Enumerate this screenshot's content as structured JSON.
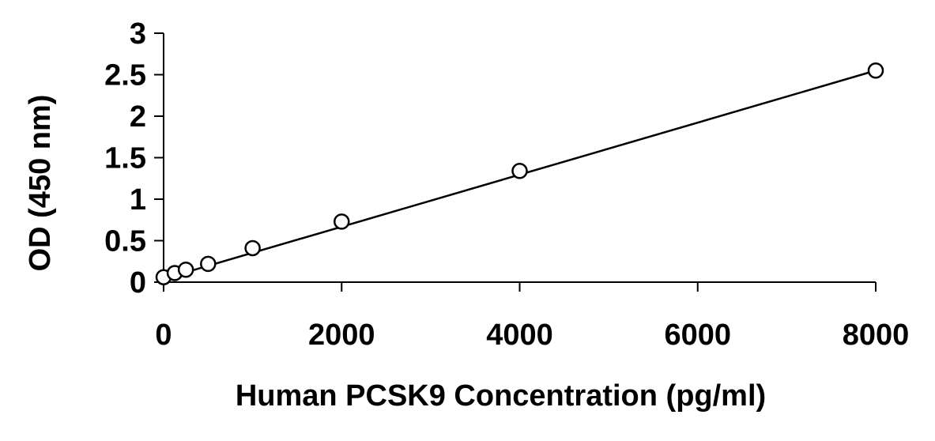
{
  "chart_data": {
    "type": "scatter",
    "title": "",
    "xlabel": "Human PCSK9 Concentration (pg/ml)",
    "ylabel": "OD (450 nm)",
    "xlim": [
      0,
      8000
    ],
    "ylim": [
      0,
      3
    ],
    "xticks": [
      0,
      2000,
      4000,
      6000,
      8000
    ],
    "xtick_labels": [
      "0",
      "2000",
      "4000",
      "6000",
      "8000"
    ],
    "yticks": [
      0,
      0.5,
      1,
      1.5,
      2,
      2.5,
      3
    ],
    "ytick_labels": [
      "0",
      "0.5",
      "1",
      "1.5",
      "2",
      "2.5",
      "3"
    ],
    "grid": false,
    "legend": "none",
    "series": [
      {
        "marker": "open-circle",
        "x": [
          0,
          125,
          250,
          500,
          1000,
          2000,
          4000,
          8000
        ],
        "y": [
          0.06,
          0.11,
          0.15,
          0.22,
          0.41,
          0.73,
          1.34,
          2.55
        ]
      }
    ],
    "trendline": {
      "type": "linear",
      "x": [
        0,
        8000
      ],
      "y": [
        0.04,
        2.55
      ]
    },
    "colors": {
      "marker": "#000000",
      "line": "#000000",
      "axis": "#000000"
    }
  }
}
